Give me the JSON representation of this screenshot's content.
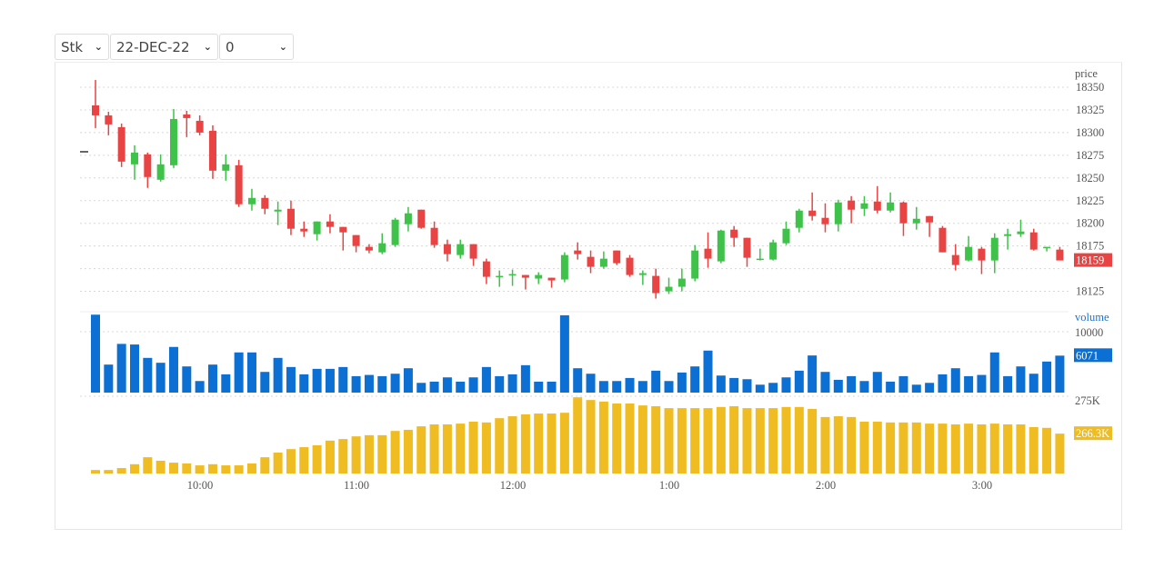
{
  "controls": {
    "symbol": "Stk",
    "date": "22-DEC-22",
    "strike": "0"
  },
  "colors": {
    "up": "#3fc24a",
    "down": "#e84443",
    "volume": "#0b6fd4",
    "oi": "#efbc22",
    "grid": "#d8d8d8"
  },
  "chart_data": [
    {
      "type": "candlestick",
      "ylabel": "price",
      "ylim": [
        18125,
        18350
      ],
      "yticks": [
        18350,
        18325,
        18300,
        18275,
        18250,
        18225,
        18200,
        18175,
        18150,
        18125
      ],
      "last_value_label": "18159",
      "xticks": [
        "10:00",
        "11:00",
        "12:00",
        "1:00",
        "2:00",
        "3:00"
      ],
      "grid": true,
      "ohlc": [
        [
          18330,
          18358,
          18305,
          18319
        ],
        [
          18319,
          18323,
          18297,
          18309
        ],
        [
          18306,
          18310,
          18262,
          18268
        ],
        [
          18265,
          18286,
          18248,
          18278
        ],
        [
          18276,
          18278,
          18239,
          18251
        ],
        [
          18248,
          18276,
          18246,
          18265
        ],
        [
          18264,
          18326,
          18261,
          18315
        ],
        [
          18320,
          18324,
          18295,
          18316
        ],
        [
          18313,
          18319,
          18297,
          18300
        ],
        [
          18302,
          18308,
          18249,
          18258
        ],
        [
          18258,
          18276,
          18247,
          18265
        ],
        [
          18264,
          18270,
          18218,
          18221
        ],
        [
          18221,
          18238,
          18214,
          18228
        ],
        [
          18228,
          18231,
          18210,
          18216
        ],
        [
          18213,
          18224,
          18198,
          18215
        ],
        [
          18216,
          18225,
          18187,
          18194
        ],
        [
          18194,
          18202,
          18185,
          18191
        ],
        [
          18188,
          18202,
          18181,
          18202
        ],
        [
          18202,
          18210,
          18189,
          18196
        ],
        [
          18196,
          18196,
          18170,
          18190
        ],
        [
          18187,
          18187,
          18168,
          18175
        ],
        [
          18174,
          18177,
          18167,
          18170
        ],
        [
          18168,
          18189,
          18166,
          18178
        ],
        [
          18176,
          18206,
          18174,
          18204
        ],
        [
          18199,
          18218,
          18191,
          18211
        ],
        [
          18215,
          18215,
          18194,
          18195
        ],
        [
          18195,
          18202,
          18173,
          18176
        ],
        [
          18177,
          18182,
          18158,
          18166
        ],
        [
          18165,
          18182,
          18161,
          18177
        ],
        [
          18177,
          18177,
          18153,
          18161
        ],
        [
          18158,
          18161,
          18133,
          18141
        ],
        [
          18141,
          18148,
          18130,
          18142
        ],
        [
          18143,
          18149,
          18131,
          18144
        ],
        [
          18143,
          18143,
          18127,
          18140
        ],
        [
          18139,
          18146,
          18133,
          18143
        ],
        [
          18140,
          18140,
          18129,
          18137
        ],
        [
          18138,
          18168,
          18135,
          18165
        ],
        [
          18170,
          18179,
          18160,
          18166
        ],
        [
          18163,
          18170,
          18145,
          18152
        ],
        [
          18152,
          18169,
          18150,
          18161
        ],
        [
          18170,
          18170,
          18154,
          18156
        ],
        [
          18162,
          18165,
          18141,
          18143
        ],
        [
          18143,
          18148,
          18132,
          18145
        ],
        [
          18142,
          18150,
          18117,
          18123
        ],
        [
          18125,
          18140,
          18122,
          18130
        ],
        [
          18130,
          18150,
          18125,
          18139
        ],
        [
          18139,
          18176,
          18136,
          18170
        ],
        [
          18172,
          18190,
          18151,
          18161
        ],
        [
          18158,
          18193,
          18156,
          18192
        ],
        [
          18193,
          18197,
          18174,
          18184
        ],
        [
          18184,
          18184,
          18152,
          18162
        ],
        [
          18160,
          18172,
          18159,
          18161
        ],
        [
          18160,
          18182,
          18159,
          18179
        ],
        [
          18178,
          18202,
          18176,
          18194
        ],
        [
          18195,
          18216,
          18190,
          18214
        ],
        [
          18214,
          18234,
          18203,
          18208
        ],
        [
          18206,
          18222,
          18190,
          18199
        ],
        [
          18199,
          18226,
          18191,
          18223
        ],
        [
          18225,
          18230,
          18200,
          18215
        ],
        [
          18216,
          18230,
          18208,
          18222
        ],
        [
          18224,
          18241,
          18211,
          18214
        ],
        [
          18214,
          18234,
          18212,
          18223
        ],
        [
          18223,
          18224,
          18186,
          18200
        ],
        [
          18200,
          18218,
          18193,
          18205
        ],
        [
          18208,
          18208,
          18185,
          18201
        ],
        [
          18195,
          18197,
          18168,
          18168
        ],
        [
          18165,
          18177,
          18148,
          18154
        ],
        [
          18159,
          18186,
          18158,
          18174
        ],
        [
          18172,
          18174,
          18144,
          18159
        ],
        [
          18159,
          18189,
          18145,
          18184
        ],
        [
          18186,
          18194,
          18171,
          18188
        ],
        [
          18188,
          18204,
          18185,
          18191
        ],
        [
          18190,
          18194,
          18170,
          18171
        ],
        [
          18173,
          18174,
          18169,
          18174
        ],
        [
          18171,
          18174,
          18160,
          18159
        ]
      ]
    },
    {
      "type": "bar",
      "ylabel": "volume",
      "yticks": [
        10000
      ],
      "last_value_label": "6071",
      "values": [
        12800,
        4600,
        8000,
        7900,
        5700,
        4900,
        7500,
        4300,
        1900,
        4600,
        3000,
        6600,
        6600,
        3400,
        5700,
        4200,
        3000,
        3900,
        3900,
        4200,
        2700,
        2900,
        2700,
        3100,
        4000,
        1600,
        1800,
        2500,
        1800,
        2500,
        4200,
        2700,
        3000,
        4500,
        1800,
        1800,
        12700,
        4000,
        3100,
        1900,
        1900,
        2400,
        1900,
        3600,
        1900,
        3300,
        4300,
        6900,
        2800,
        2400,
        2200,
        1300,
        1600,
        2500,
        3600,
        6100,
        3400,
        2100,
        2700,
        1900,
        3400,
        1800,
        2700,
        1300,
        1600,
        3000,
        4000,
        2700,
        2900,
        6600,
        2700,
        4300,
        3100,
        5100,
        6071
      ]
    },
    {
      "type": "bar",
      "yticks": [
        "275K"
      ],
      "last_value_label": "266.3K",
      "values_k": [
        256.9,
        256.9,
        257.4,
        258.4,
        260.2,
        259.3,
        258.8,
        258.6,
        258.1,
        258.4,
        258.1,
        258.1,
        258.6,
        260.2,
        261.4,
        262.3,
        262.8,
        263.3,
        264.5,
        264.9,
        265.6,
        265.9,
        265.9,
        267.0,
        267.3,
        268.2,
        268.7,
        268.7,
        268.9,
        269.4,
        269.2,
        270.3,
        270.8,
        271.3,
        271.5,
        271.5,
        271.7,
        275.7,
        275.0,
        274.6,
        274.1,
        274.1,
        273.6,
        273.4,
        272.9,
        272.9,
        272.9,
        272.9,
        273.2,
        273.4,
        272.9,
        272.9,
        272.9,
        273.2,
        273.2,
        272.7,
        270.6,
        270.8,
        270.6,
        269.4,
        269.4,
        269.2,
        269.2,
        269.2,
        268.9,
        268.9,
        268.7,
        268.9,
        268.7,
        268.9,
        268.7,
        268.7,
        268.0,
        267.8,
        266.3
      ]
    }
  ]
}
